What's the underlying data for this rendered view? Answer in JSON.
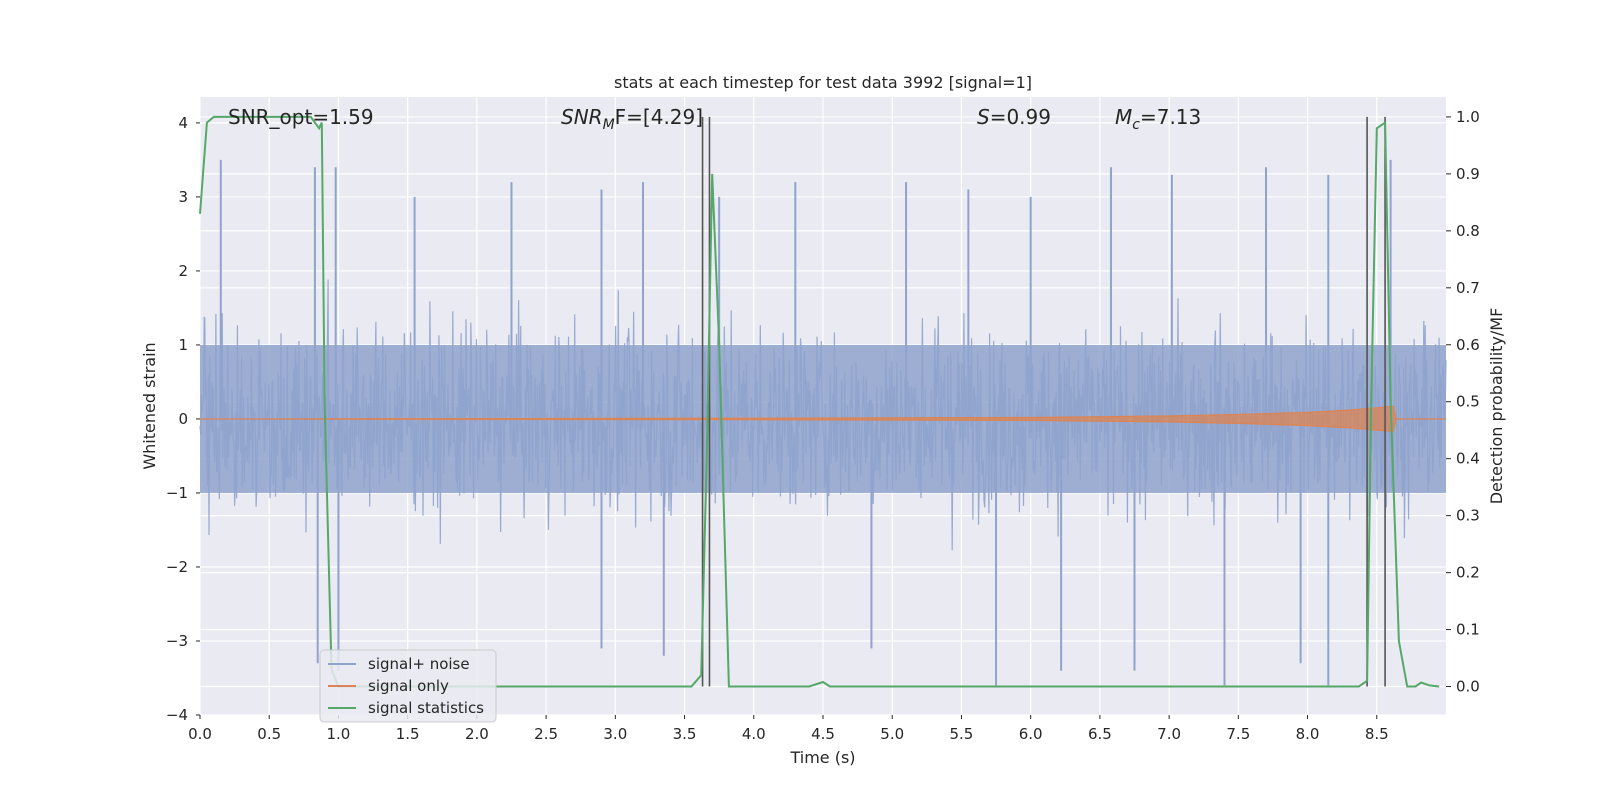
{
  "chart_data": {
    "type": "line",
    "title": "stats at each timestep for test data 3992 [signal=1]",
    "xlabel": "Time (s)",
    "ylabel_left": "Whitened strain",
    "ylabel_right": "Detection probability/MF",
    "xlim": [
      0,
      9.0
    ],
    "ylim_left": [
      -4.0,
      4.35
    ],
    "ylim_right": [
      -0.05,
      1.035
    ],
    "x_ticks": [
      0.0,
      0.5,
      1.0,
      1.5,
      2.0,
      2.5,
      3.0,
      3.5,
      4.0,
      4.5,
      5.0,
      5.5,
      6.0,
      6.5,
      7.0,
      7.5,
      8.0,
      8.5
    ],
    "x_tick_labels": [
      "0.0",
      "0.5",
      "1.0",
      "1.5",
      "2.0",
      "2.5",
      "3.0",
      "3.5",
      "4.0",
      "4.5",
      "5.0",
      "5.5",
      "6.0",
      "6.5",
      "7.0",
      "7.5",
      "8.0",
      "8.5"
    ],
    "y_left_ticks": [
      4,
      3,
      2,
      1,
      0,
      -1,
      -2,
      -3,
      -4
    ],
    "y_left_tick_labels": [
      "4",
      "3",
      "2",
      "1",
      "0",
      "−1",
      "−2",
      "−3",
      "−4"
    ],
    "y_right_ticks": [
      1.0,
      0.9,
      0.8,
      0.7,
      0.6,
      0.5,
      0.4,
      0.3,
      0.2,
      0.1,
      0.0
    ],
    "y_right_tick_labels": [
      "1.0",
      "0.9",
      "0.8",
      "0.7",
      "0.6",
      "0.5",
      "0.4",
      "0.3",
      "0.2",
      "0.1",
      "0.0"
    ],
    "grid": true,
    "annotations": {
      "snr_opt": "SNR_opt=1.59",
      "snr_mf_main": "SNR",
      "snr_mf_sub": "M",
      "snr_mf_rest": "F=[4.29]",
      "s_main": "S",
      "s_rest": "=0.99",
      "mc_main": "M",
      "mc_sub": "c",
      "mc_rest": "=7.13"
    },
    "legend": {
      "placement": "lower-left",
      "entries": [
        "signal+ noise",
        "signal only",
        "signal statistics"
      ]
    },
    "colors": {
      "noise": "#8fa3cc",
      "signal": "#dd8452",
      "statistics": "#55a868",
      "vlines": "#555555",
      "background": "#eaeaf2",
      "grid": "#ffffff"
    },
    "series": [
      {
        "name": "signal+ noise",
        "axis": "left",
        "sampling": "dense whitened noise, amplitude ~1 with spikes between -3.6 and 3.5",
        "envelope_core": [
          -1.0,
          1.0
        ],
        "spikes": [
          {
            "x": 0.15,
            "y": 3.5
          },
          {
            "x": 0.83,
            "y": 3.4
          },
          {
            "x": 0.98,
            "y": 3.4
          },
          {
            "x": 1.55,
            "y": 3.0
          },
          {
            "x": 2.25,
            "y": 3.2
          },
          {
            "x": 2.9,
            "y": 3.1
          },
          {
            "x": 3.2,
            "y": 3.2
          },
          {
            "x": 3.75,
            "y": 3.0
          },
          {
            "x": 4.3,
            "y": 3.2
          },
          {
            "x": 5.1,
            "y": 3.2
          },
          {
            "x": 5.55,
            "y": 3.1
          },
          {
            "x": 6.0,
            "y": 3.0
          },
          {
            "x": 6.58,
            "y": 3.4
          },
          {
            "x": 7.02,
            "y": 3.3
          },
          {
            "x": 7.7,
            "y": 3.4
          },
          {
            "x": 8.15,
            "y": 3.3
          },
          {
            "x": 8.6,
            "y": 3.5
          },
          {
            "x": 0.85,
            "y": -3.3
          },
          {
            "x": 1.0,
            "y": -3.4
          },
          {
            "x": 2.9,
            "y": -3.1
          },
          {
            "x": 3.35,
            "y": -3.2
          },
          {
            "x": 4.85,
            "y": -3.1
          },
          {
            "x": 5.75,
            "y": -3.6
          },
          {
            "x": 6.22,
            "y": -3.4
          },
          {
            "x": 6.75,
            "y": -3.4
          },
          {
            "x": 7.4,
            "y": -3.6
          },
          {
            "x": 7.95,
            "y": -3.3
          },
          {
            "x": 8.15,
            "y": -3.6
          }
        ]
      },
      {
        "name": "signal only",
        "axis": "left",
        "description": "near-zero chirp growing towards merger",
        "x": [
          0.0,
          4.0,
          6.0,
          7.0,
          7.5,
          8.0,
          8.3,
          8.5,
          8.62,
          8.64,
          9.0
        ],
        "amplitude": [
          0.0,
          0.01,
          0.02,
          0.04,
          0.06,
          0.09,
          0.12,
          0.15,
          0.17,
          0.0,
          0.0
        ]
      },
      {
        "name": "signal statistics",
        "axis": "right",
        "x": [
          0.0,
          0.05,
          0.1,
          0.2,
          0.3,
          0.4,
          0.5,
          0.6,
          0.7,
          0.8,
          0.86,
          0.88,
          0.9,
          0.95,
          1.0,
          1.1,
          2.0,
          3.0,
          3.55,
          3.62,
          3.66,
          3.7,
          3.75,
          3.82,
          3.9,
          4.0,
          4.4,
          4.5,
          4.55,
          4.6,
          5.0,
          6.0,
          7.0,
          8.0,
          8.37,
          8.43,
          8.46,
          8.5,
          8.56,
          8.6,
          8.66,
          8.72,
          8.78,
          8.82,
          8.88,
          8.95
        ],
        "y": [
          0.83,
          0.99,
          1.0,
          1.0,
          1.0,
          1.0,
          1.0,
          1.0,
          1.0,
          1.0,
          0.98,
          0.99,
          0.5,
          0.03,
          0.0,
          0.0,
          0.0,
          0.0,
          0.0,
          0.02,
          0.4,
          0.9,
          0.6,
          0.0,
          0.0,
          0.0,
          0.0,
          0.008,
          0.0,
          0.0,
          0.0,
          0.0,
          0.0,
          0.0,
          0.0,
          0.01,
          0.5,
          0.98,
          0.99,
          0.5,
          0.08,
          0.0,
          0.0,
          0.007,
          0.002,
          0.0
        ]
      }
    ],
    "vlines_x": [
      3.63,
      3.68,
      8.43,
      8.56
    ]
  }
}
